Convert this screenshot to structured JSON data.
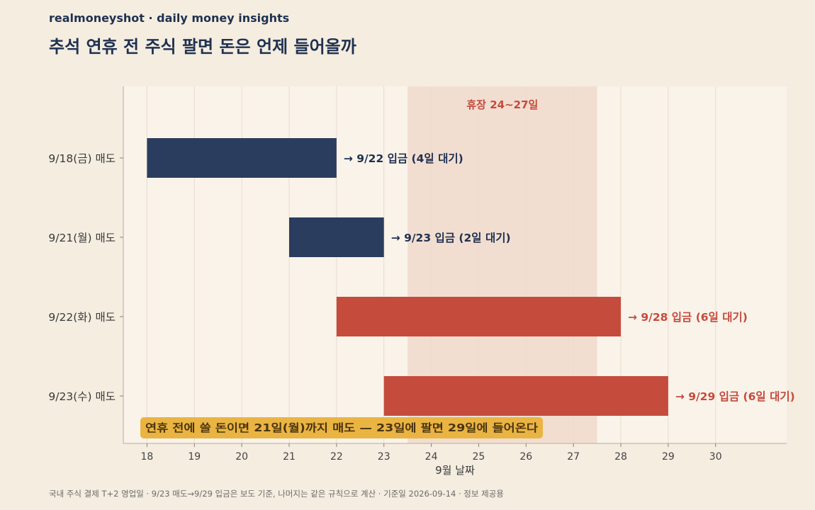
{
  "header": {
    "brand": "realmoneyshot · daily money insights",
    "title": "추석 연휴 전 주식 팔면 돈은 언제 들어올까"
  },
  "footnote": "국내 주식 결제 T+2 영업일 · 9/23 매도→9/29 입금은 보도 기준, 나머지는 같은 규칙으로 계산 · 기준일 2026-09-14 · 정보 제공용",
  "colors": {
    "background": "#f4ede0",
    "plot_bg": "#faf3ea",
    "navy": "#2a3d5e",
    "red": "#c54b3c",
    "holiday_band": "#f0d9cc",
    "callout": "#eab443"
  },
  "chart_data": {
    "type": "bar",
    "orientation": "horizontal",
    "xlabel": "9월 날짜",
    "xlim": [
      17.5,
      31.5
    ],
    "xticks": [
      18,
      19,
      20,
      21,
      22,
      23,
      24,
      25,
      26,
      27,
      28,
      29,
      30
    ],
    "grid": "vertical",
    "holiday": {
      "start": 23.5,
      "end": 27.5,
      "label": "휴장 24~27일"
    },
    "rows": [
      {
        "label": "9/18(금) 매도",
        "start": 18,
        "end": 22,
        "annotation": "→ 9/22 입금 (4일 대기)",
        "color": "navy"
      },
      {
        "label": "9/21(월) 매도",
        "start": 21,
        "end": 23,
        "annotation": "→ 9/23 입금 (2일 대기)",
        "color": "navy"
      },
      {
        "label": "9/22(화) 매도",
        "start": 22,
        "end": 28,
        "annotation": "→ 9/28 입금 (6일 대기)",
        "color": "red"
      },
      {
        "label": "9/23(수) 매도",
        "start": 23,
        "end": 29,
        "annotation": "→ 9/29 입금 (6일 대기)",
        "color": "red"
      }
    ],
    "callout": "연휴 전에 쓸 돈이면 21일(월)까지 매도 — 23일에 팔면 29일에 들어온다"
  }
}
